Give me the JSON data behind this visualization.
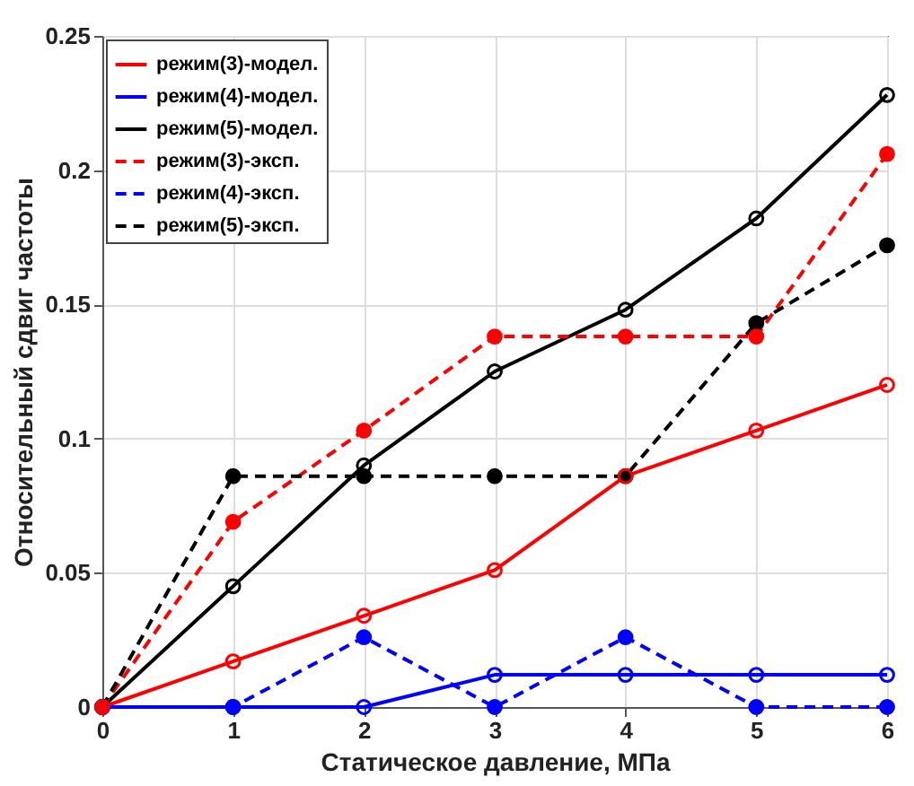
{
  "chart_data": {
    "type": "line",
    "xlabel": "Статическое давление, МПа",
    "ylabel": "Относительный сдвиг частоты",
    "x": [
      0,
      1,
      2,
      3,
      4,
      5,
      6
    ],
    "series": [
      {
        "name": "режим(3)-модел.",
        "color": "#ff0000",
        "line_style": "solid",
        "values": [
          0,
          0.017,
          0.034,
          0.051,
          0.086,
          0.103,
          0.12
        ]
      },
      {
        "name": "режим(4)-модел.",
        "color": "#0000ff",
        "line_style": "solid",
        "values": [
          0,
          0,
          0,
          0.012,
          0.012,
          0.012,
          0.012
        ]
      },
      {
        "name": "режим(5)-модел.",
        "color": "#000000",
        "line_style": "solid",
        "values": [
          0,
          0.045,
          0.09,
          0.125,
          0.148,
          0.182,
          0.228
        ]
      },
      {
        "name": "режим(3)-эксп.",
        "color": "#ff0000",
        "line_style": "dashed",
        "values": [
          0,
          0.069,
          0.103,
          0.138,
          0.138,
          0.138,
          0.206
        ]
      },
      {
        "name": "режим(4)-эксп.",
        "color": "#0000ff",
        "line_style": "dashed",
        "values": [
          0,
          0,
          0.026,
          0,
          0.026,
          0,
          0
        ]
      },
      {
        "name": "режим(5)-эксп.",
        "color": "#000000",
        "line_style": "dashed",
        "values": [
          0,
          0.086,
          0.086,
          0.086,
          0.086,
          0.143,
          0.172
        ]
      }
    ],
    "xlim": [
      0,
      6
    ],
    "xticks": [
      0,
      1,
      2,
      3,
      4,
      5,
      6
    ],
    "ylim": [
      0,
      0.25
    ],
    "yticks": [
      0,
      0.05,
      0.1,
      0.15,
      0.2,
      0.25
    ],
    "grid": true,
    "legend": "top left",
    "marker": "circle"
  }
}
